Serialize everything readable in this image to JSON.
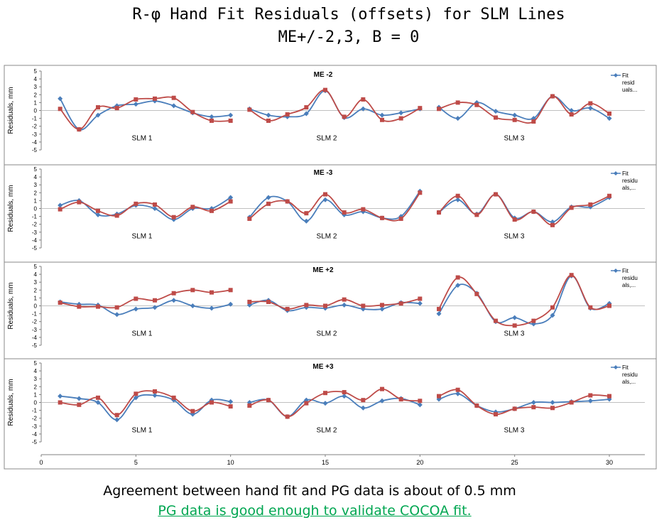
{
  "title_line1": "R-φ Hand Fit Residuals (offsets) for SLM Lines",
  "title_line2": "ME+/-2,3,      B = 0",
  "footer_line1": "Agreement between hand fit and PG data is about of 0.5 mm",
  "footer_line2": "PG data is good enough to validate COCOA fit.",
  "chart_data": {
    "type": "line",
    "ylabel": "Residuals, mm",
    "ylim": [
      -5,
      5
    ],
    "yticks": [
      5,
      4,
      3,
      2,
      1,
      0,
      -1,
      -2,
      -3,
      -4,
      -5
    ],
    "xlim": [
      0,
      32
    ],
    "xticks": [
      0,
      5,
      10,
      15,
      20,
      25,
      30
    ],
    "segment_labels": [
      "SLM 1",
      "SLM 2",
      "SLM 3"
    ],
    "series_colors": {
      "fit": "#4a7ebb",
      "pg": "#be4b48"
    },
    "panels": [
      {
        "title": "ME -2",
        "legend": [
          "Fit",
          "resid",
          "uals..."
        ],
        "fit": [
          1.5,
          -2.4,
          -0.6,
          0.6,
          0.8,
          1.2,
          0.6,
          -0.3,
          -0.8,
          -0.6,
          0.2,
          -0.6,
          -0.8,
          -0.4,
          2.5,
          -0.9,
          0.2,
          -0.6,
          -0.3,
          0.2,
          0.4,
          -1.0,
          1.0,
          -0.1,
          -0.6,
          -1.0,
          1.8,
          0.0,
          0.3,
          -1.0
        ],
        "pg": [
          0.2,
          -2.4,
          0.4,
          0.3,
          1.4,
          1.5,
          1.6,
          -0.2,
          -1.3,
          -1.3,
          0.1,
          -1.3,
          -0.5,
          0.4,
          2.6,
          -0.8,
          1.4,
          -1.2,
          -1.0,
          0.3,
          0.2,
          1.0,
          0.7,
          -0.9,
          -1.2,
          -1.4,
          1.8,
          -0.5,
          0.9,
          -0.4
        ]
      },
      {
        "title": "ME -3",
        "legend": [
          "Fit",
          "residu",
          "als,..."
        ],
        "fit": [
          0.4,
          1.0,
          -0.8,
          -0.7,
          0.4,
          0.0,
          -1.4,
          0.0,
          0.0,
          1.4,
          -1.1,
          1.4,
          0.9,
          -1.6,
          1.1,
          -0.8,
          -0.4,
          -1.2,
          -1.0,
          2.2,
          -0.5,
          1.1,
          -0.7,
          1.8,
          -1.2,
          -0.4,
          -1.7,
          0.2,
          0.2,
          1.4
        ],
        "pg": [
          -0.1,
          0.8,
          -0.3,
          -0.9,
          0.6,
          0.5,
          -1.1,
          0.2,
          -0.3,
          0.9,
          -1.3,
          0.6,
          0.9,
          -0.6,
          1.8,
          -0.5,
          -0.1,
          -1.2,
          -1.3,
          2.0,
          -0.5,
          1.6,
          -0.8,
          1.8,
          -1.4,
          -0.4,
          -2.1,
          0.1,
          0.5,
          1.6
        ]
      },
      {
        "title": "ME +2",
        "legend": [
          "Fit",
          "residu",
          "als,..."
        ],
        "fit": [
          0.5,
          0.2,
          0.1,
          -1.1,
          -0.4,
          -0.2,
          0.7,
          0.0,
          -0.3,
          0.2,
          0.1,
          0.7,
          -0.6,
          -0.2,
          -0.3,
          0.1,
          -0.4,
          -0.4,
          0.4,
          0.3,
          -1.0,
          2.6,
          1.6,
          -2.0,
          -1.5,
          -2.3,
          -1.2,
          3.8,
          -0.3,
          0.3
        ],
        "pg": [
          0.4,
          -0.1,
          -0.1,
          -0.2,
          0.9,
          0.7,
          1.6,
          2.0,
          1.7,
          2.0,
          0.5,
          0.5,
          -0.4,
          0.1,
          0.0,
          0.8,
          0.0,
          0.1,
          0.3,
          0.9,
          -0.4,
          3.6,
          1.5,
          -1.9,
          -2.5,
          -1.9,
          -0.2,
          3.9,
          -0.2,
          0.0
        ]
      },
      {
        "title": "ME +3",
        "legend": [
          "Fit",
          "residu",
          "als,..."
        ],
        "fit": [
          0.8,
          0.5,
          0.0,
          -2.2,
          0.6,
          0.9,
          0.3,
          -1.5,
          0.3,
          0.1,
          0.0,
          0.3,
          -1.8,
          0.3,
          -0.1,
          0.8,
          -0.7,
          0.2,
          0.5,
          -0.3,
          0.4,
          1.1,
          -0.4,
          -1.2,
          -0.8,
          0.0,
          0.0,
          0.1,
          0.2,
          0.4
        ],
        "pg": [
          0.0,
          -0.3,
          0.6,
          -1.6,
          1.1,
          1.4,
          0.6,
          -1.1,
          0.0,
          -0.5,
          -0.4,
          0.3,
          -1.8,
          -0.1,
          1.2,
          1.3,
          0.3,
          1.7,
          0.4,
          0.2,
          0.8,
          1.6,
          -0.4,
          -1.5,
          -0.8,
          -0.6,
          -0.7,
          0.0,
          0.9,
          0.8
        ]
      }
    ]
  }
}
